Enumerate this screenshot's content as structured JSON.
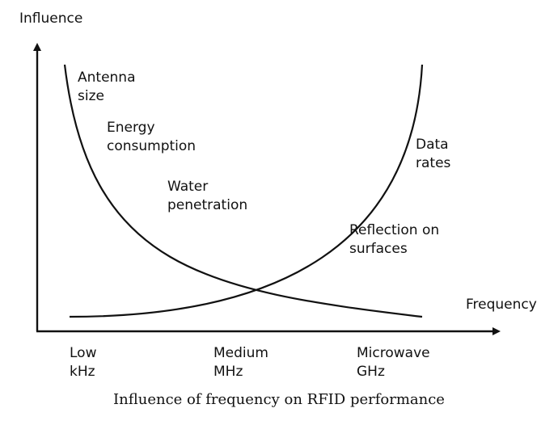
{
  "axes": {
    "y_label": "Influence",
    "x_label": "Frequency"
  },
  "curves": {
    "decreasing": {
      "labels": [
        {
          "line1": "Antenna",
          "line2": "size"
        },
        {
          "line1": "Energy",
          "line2": "consumption"
        },
        {
          "line1": "Water",
          "line2": "penetration"
        }
      ]
    },
    "increasing": {
      "labels": [
        {
          "line1": "Data",
          "line2": "rates"
        },
        {
          "line1": "Reflection on",
          "line2": "surfaces"
        }
      ]
    }
  },
  "bands": [
    {
      "line1": "Low",
      "line2": "kHz"
    },
    {
      "line1": "Medium",
      "line2": "MHz"
    },
    {
      "line1": "Microwave",
      "line2": "GHz"
    }
  ],
  "caption": "Influence of frequency on RFID performance",
  "colors": {
    "line": "#111111",
    "background": "#ffffff"
  }
}
